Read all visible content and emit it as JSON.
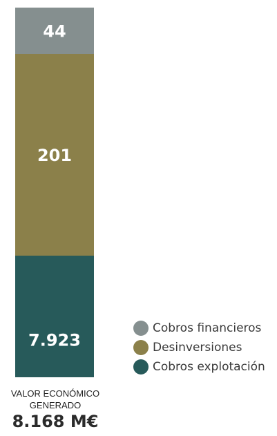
{
  "chart_data": {
    "type": "bar",
    "stacked": true,
    "title": "",
    "xlabel": "",
    "ylabel": "",
    "categories": [
      "VALOR ECONÓMICO GENERADO"
    ],
    "series": [
      {
        "name": "Cobros explotación",
        "values": [
          7923
        ],
        "label": "7.923",
        "color": "#275a5a"
      },
      {
        "name": "Desinversiones",
        "values": [
          201
        ],
        "label": "201",
        "color": "#8b804a"
      },
      {
        "name": "Cobros financieros",
        "values": [
          44
        ],
        "label": "44",
        "color": "#858f8f"
      }
    ],
    "legend": {
      "placement": "right",
      "order": [
        "Cobros financieros",
        "Desinversiones",
        "Cobros explotación"
      ]
    }
  },
  "total": {
    "caption_line1": "VALOR ECONÓMICO",
    "caption_line2": "GENERADO",
    "value": "8.168 M€"
  }
}
